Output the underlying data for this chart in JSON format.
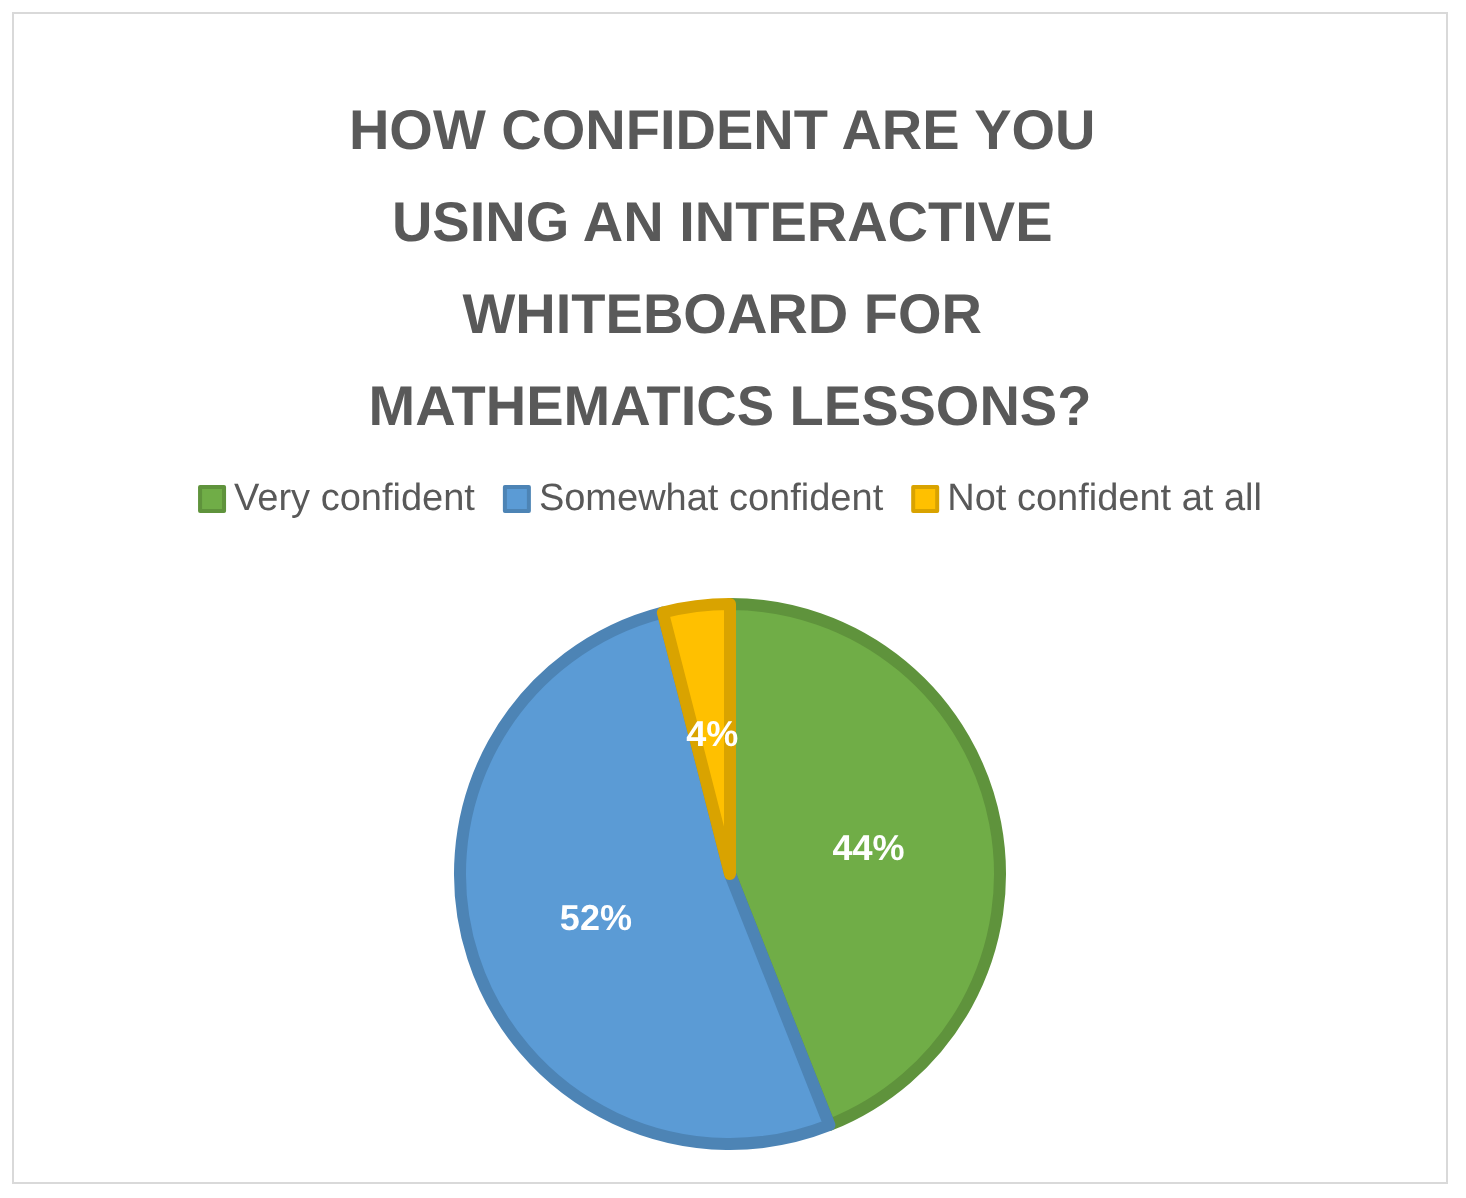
{
  "chart_data": {
    "type": "pie",
    "title": "HOW CONFIDENT ARE YOU USING AN INTERACTIVE WHITEBOARD FOR MATHEMATICS LESSONS?",
    "categories": [
      "Very confident",
      "Somewhat confident",
      "Not confident at all"
    ],
    "values": [
      44,
      52,
      4
    ],
    "colors": [
      "#70ad47",
      "#5b9bd5",
      "#ffc000"
    ],
    "value_labels": [
      "44%",
      "52%",
      "4%"
    ],
    "legend": "top"
  }
}
